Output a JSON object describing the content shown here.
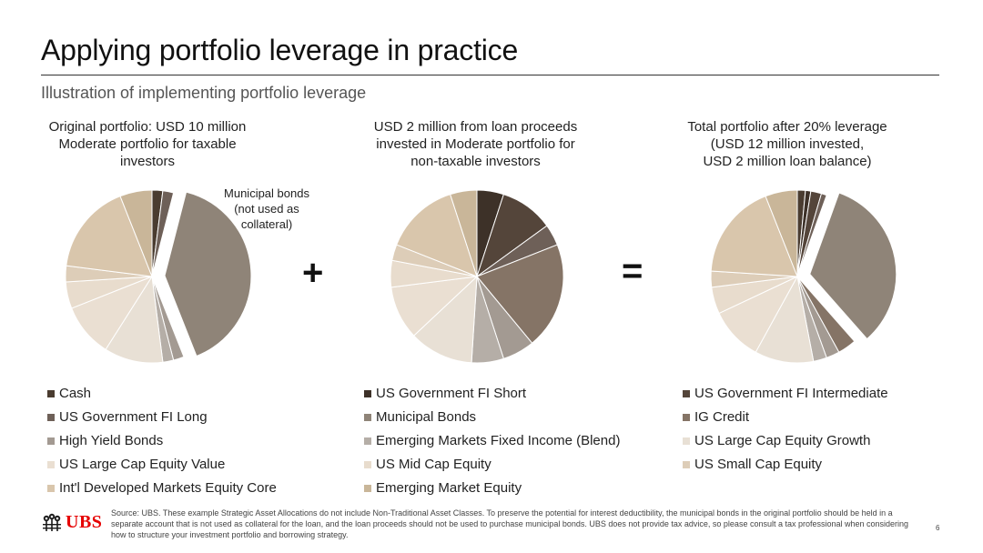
{
  "slide": {
    "title": "Applying portfolio leverage in practice",
    "subtitle": "Illustration of implementing portfolio leverage",
    "page_number": "6"
  },
  "charts": {
    "left": {
      "heading_lines": [
        "Original portfolio: USD 10 million",
        "Moderate portfolio for taxable",
        "investors"
      ]
    },
    "middle": {
      "heading_lines": [
        "USD 2 million from loan proceeds",
        "invested in Moderate portfolio for",
        "non-taxable investors"
      ]
    },
    "right": {
      "heading_lines": [
        "Total portfolio after 20% leverage",
        "(USD 12 million invested,",
        "USD 2 million loan balance)"
      ]
    }
  },
  "callout": {
    "lines": [
      "Municipal bonds",
      "(not used as",
      "collateral)"
    ]
  },
  "operators": {
    "plus": "+",
    "equals": "="
  },
  "legend": [
    {
      "label": "Cash",
      "color": "#4a3c30"
    },
    {
      "label": "US Government FI Short",
      "color": "#3d3128"
    },
    {
      "label": "US Government FI Intermediate",
      "color": "#54453a"
    },
    {
      "label": "US Government FI Long",
      "color": "#6e6058"
    },
    {
      "label": "Municipal Bonds",
      "color": "#8f8478"
    },
    {
      "label": "IG Credit",
      "color": "#857466"
    },
    {
      "label": "High Yield Bonds",
      "color": "#a39a92"
    },
    {
      "label": "Emerging Markets Fixed Income (Blend)",
      "color": "#b5aea7"
    },
    {
      "label": "US Large Cap Equity Growth",
      "color": "#e8e0d5"
    },
    {
      "label": "US Large Cap Equity Value",
      "color": "#eadfd2"
    },
    {
      "label": "US Mid Cap Equity",
      "color": "#e8dccd"
    },
    {
      "label": "US Small Cap Equity",
      "color": "#ddcdb8"
    },
    {
      "label": "Int'l Developed Markets Equity Core",
      "color": "#d9c6ac"
    },
    {
      "label": "Emerging Market Equity",
      "color": "#c9b699"
    }
  ],
  "footer": {
    "logo_text": "UBS",
    "source_text": "Source: UBS. These example Strategic Asset Allocations do not include Non-Traditional Asset Classes. To preserve the potential for interest deductibility, the municipal bonds in the original portfolio should be held in a separate account that is not used as collateral for the loan, and the loan proceeds should not be used to purchase municipal bonds. UBS does not provide tax advice, so please consult a tax professional when considering how to structure your investment portfolio and borrowing strategy."
  },
  "chart_data": [
    {
      "type": "pie",
      "title": "Original portfolio: USD 10 million Moderate portfolio for taxable investors",
      "exploded": "Municipal Bonds",
      "slices": [
        {
          "label": "Cash",
          "value": 2
        },
        {
          "label": "US Government FI Long",
          "value": 2
        },
        {
          "label": "Municipal Bonds",
          "value": 40
        },
        {
          "label": "High Yield Bonds",
          "value": 2
        },
        {
          "label": "Emerging Markets Fixed Income (Blend)",
          "value": 2
        },
        {
          "label": "US Large Cap Equity Growth",
          "value": 11
        },
        {
          "label": "US Large Cap Equity Value",
          "value": 10
        },
        {
          "label": "US Mid Cap Equity",
          "value": 5
        },
        {
          "label": "US Small Cap Equity",
          "value": 3
        },
        {
          "label": "Int'l Developed Markets Equity Core",
          "value": 17
        },
        {
          "label": "Emerging Market Equity",
          "value": 6
        }
      ]
    },
    {
      "type": "pie",
      "title": "USD 2 million from loan proceeds invested in Moderate portfolio for non-taxable investors",
      "slices": [
        {
          "label": "US Government FI Short",
          "value": 5
        },
        {
          "label": "US Government FI Intermediate",
          "value": 10
        },
        {
          "label": "US Government FI Long",
          "value": 4
        },
        {
          "label": "IG Credit",
          "value": 20
        },
        {
          "label": "High Yield Bonds",
          "value": 6
        },
        {
          "label": "Emerging Markets Fixed Income (Blend)",
          "value": 6
        },
        {
          "label": "US Large Cap Equity Growth",
          "value": 12
        },
        {
          "label": "US Large Cap Equity Value",
          "value": 10
        },
        {
          "label": "US Mid Cap Equity",
          "value": 5
        },
        {
          "label": "US Small Cap Equity",
          "value": 3
        },
        {
          "label": "Int'l Developed Markets Equity Core",
          "value": 14
        },
        {
          "label": "Emerging Market Equity",
          "value": 5
        }
      ]
    },
    {
      "type": "pie",
      "title": "Total portfolio after 20% leverage (USD 12 million invested, USD 2 million loan balance)",
      "exploded": "Municipal Bonds",
      "slices": [
        {
          "label": "Cash",
          "value": 1.5
        },
        {
          "label": "US Government FI Short",
          "value": 1
        },
        {
          "label": "US Government FI Intermediate",
          "value": 2
        },
        {
          "label": "US Government FI Long",
          "value": 1
        },
        {
          "label": "Municipal Bonds",
          "value": 33
        },
        {
          "label": "IG Credit",
          "value": 3.5
        },
        {
          "label": "High Yield Bonds",
          "value": 2.5
        },
        {
          "label": "Emerging Markets Fixed Income (Blend)",
          "value": 2.5
        },
        {
          "label": "US Large Cap Equity Growth",
          "value": 11
        },
        {
          "label": "US Large Cap Equity Value",
          "value": 10
        },
        {
          "label": "US Mid Cap Equity",
          "value": 5
        },
        {
          "label": "US Small Cap Equity",
          "value": 3
        },
        {
          "label": "Int'l Developed Markets Equity Core",
          "value": 18
        },
        {
          "label": "Emerging Market Equity",
          "value": 6
        }
      ]
    }
  ]
}
